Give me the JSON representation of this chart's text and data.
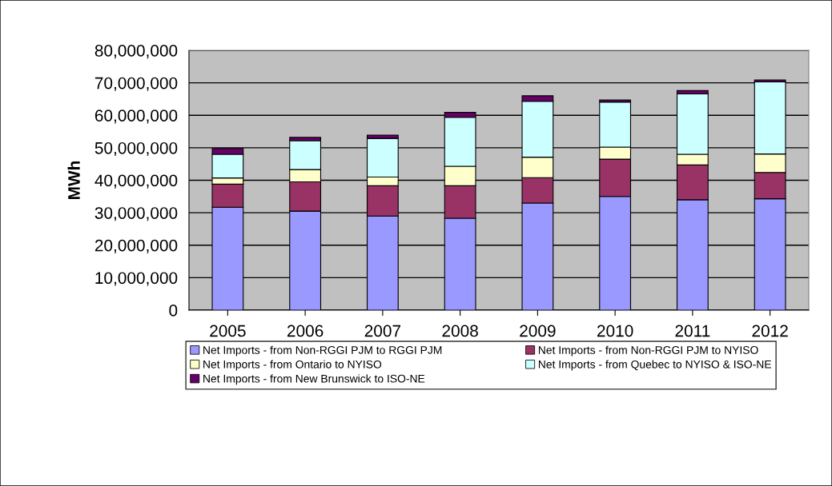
{
  "chart_data": {
    "type": "bar",
    "stacked": true,
    "ylabel": "MWh",
    "categories": [
      "2005",
      "2006",
      "2007",
      "2008",
      "2009",
      "2010",
      "2011",
      "2012"
    ],
    "series": [
      {
        "name": "Net Imports - from Non-RGGI PJM to RGGI PJM",
        "color": "#9999ff",
        "values": [
          31700000,
          30500000,
          29000000,
          28300000,
          33000000,
          35000000,
          34000000,
          34300000
        ]
      },
      {
        "name": "Net Imports - from Non-RGGI PJM to NYISO",
        "color": "#993366",
        "values": [
          7100000,
          9000000,
          9300000,
          10000000,
          7800000,
          11500000,
          10700000,
          8100000
        ]
      },
      {
        "name": "Net Imports - from Ontario to NYISO",
        "color": "#ffffcc",
        "values": [
          1900000,
          3800000,
          2700000,
          6000000,
          6300000,
          3700000,
          3300000,
          5700000
        ]
      },
      {
        "name": "Net Imports - from Quebec to NYISO & ISO-NE",
        "color": "#ccffff",
        "values": [
          7300000,
          8900000,
          11900000,
          15100000,
          17200000,
          13900000,
          18600000,
          22200000
        ]
      },
      {
        "name": "Net Imports - from New Brunswick to ISO-NE",
        "color": "#660066",
        "values": [
          1800000,
          1000000,
          1000000,
          1500000,
          1700000,
          600000,
          1000000,
          600000
        ]
      }
    ],
    "ylim": [
      0,
      80000000
    ],
    "yticks": [
      {
        "value": 0,
        "label": "0"
      },
      {
        "value": 10000000,
        "label": "10,000,000"
      },
      {
        "value": 20000000,
        "label": "20,000,000"
      },
      {
        "value": 30000000,
        "label": "30,000,000"
      },
      {
        "value": 40000000,
        "label": "40,000,000"
      },
      {
        "value": 50000000,
        "label": "50,000,000"
      },
      {
        "value": 60000000,
        "label": "60,000,000"
      },
      {
        "value": 70000000,
        "label": "70,000,000"
      },
      {
        "value": 80000000,
        "label": "80,000,000"
      }
    ],
    "grid": "y",
    "legend": "bottom"
  }
}
